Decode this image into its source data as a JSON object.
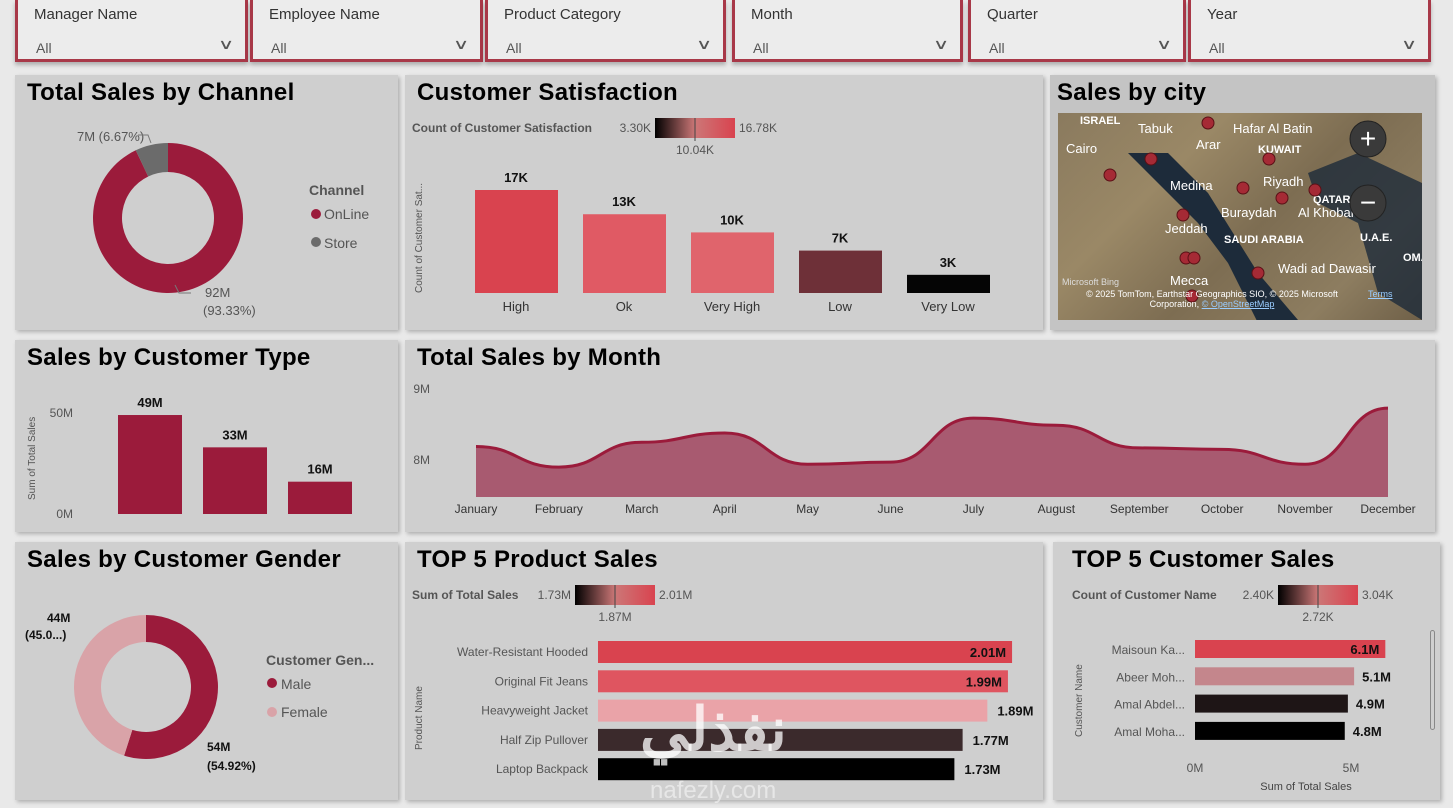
{
  "slicers": [
    {
      "label": "Manager Name",
      "value": "All"
    },
    {
      "label": "Employee Name",
      "value": "All"
    },
    {
      "label": "Product Category",
      "value": "All"
    },
    {
      "label": "Month",
      "value": "All"
    },
    {
      "label": "Quarter",
      "value": "All"
    },
    {
      "label": "Year",
      "value": "All"
    }
  ],
  "colors": {
    "primary": "#9b1b3b",
    "store": "#6b6b6b",
    "female": "#d9a3a8"
  },
  "channel": {
    "title": "Total Sales by Channel",
    "legend_title": "Channel",
    "slices": [
      {
        "name": "OnLine",
        "value": 92,
        "label": "92M",
        "pct": "(93.33%)"
      },
      {
        "name": "Store",
        "value": 7,
        "label": "7M (6.67%)"
      }
    ]
  },
  "satisfaction": {
    "title": "Customer Satisfaction",
    "legend_label": "Count of Customer Satisfaction",
    "grad_min": "3.30K",
    "grad_mid": "10.04K",
    "grad_max": "16.78K",
    "ylabel": "Count of Customer Sat...",
    "bars": [
      {
        "cat": "High",
        "value": 17,
        "label": "17K",
        "color": "#d9434f"
      },
      {
        "cat": "Ok",
        "value": 13,
        "label": "13K",
        "color": "#e05a64"
      },
      {
        "cat": "Very High",
        "value": 10,
        "label": "10K",
        "color": "#e0646c"
      },
      {
        "cat": "Low",
        "value": 7,
        "label": "7K",
        "color": "#6e3038"
      },
      {
        "cat": "Very Low",
        "value": 3,
        "label": "3K",
        "color": "#050505"
      }
    ]
  },
  "city_map": {
    "title": "Sales by city",
    "places": [
      "Tabuk",
      "Hafar Al Batin",
      "Cairo",
      "Arar",
      "KUWAIT",
      "Medina",
      "Riyadh",
      "Buraydah",
      "Al Khobar",
      "Jeddah",
      "SAUDI ARABIA",
      "U.A.E.",
      "Wadi ad Dawasir",
      "Mecca",
      "ISRAEL",
      "OMAN",
      "QATAR"
    ],
    "attribution": "© 2025 TomTom, Earthstar Geographics SIO, © 2025 Microsoft Corporation,",
    "osm": "© OpenStreetMap",
    "terms": "Terms",
    "bing": "Microsoft Bing",
    "zoom_in": "+",
    "zoom_out": "−"
  },
  "customer_type": {
    "title": "Sales by Customer Type",
    "ylabel": "Sum of Total Sales",
    "ticks": [
      "50M",
      "0M"
    ],
    "bars": [
      {
        "value": 49,
        "label": "49M"
      },
      {
        "value": 33,
        "label": "33M"
      },
      {
        "value": 16,
        "label": "16M"
      }
    ]
  },
  "chart_data": {
    "type": "area",
    "title": "Total Sales by Month",
    "categories": [
      "January",
      "February",
      "March",
      "April",
      "May",
      "June",
      "July",
      "August",
      "September",
      "October",
      "November",
      "December"
    ],
    "values": [
      8.19,
      7.9,
      8.25,
      8.38,
      7.94,
      7.97,
      8.59,
      8.49,
      8.17,
      8.15,
      7.94,
      8.73
    ],
    "unit": "M",
    "yticks": [
      "9M",
      "8M"
    ],
    "ylim": [
      7.48,
      9
    ]
  },
  "gender": {
    "title": "Sales by Customer Gender",
    "legend_title": "Customer Gen...",
    "slices": [
      {
        "name": "Male",
        "value": 54.92,
        "label": "54M",
        "pct": "(54.92%)"
      },
      {
        "name": "Female",
        "value": 45.08,
        "label": "44M",
        "pct": "(45.0...)"
      }
    ]
  },
  "top_products": {
    "title": "TOP 5 Product Sales",
    "legend_label": "Sum of Total Sales",
    "grad_min": "1.73M",
    "grad_mid": "1.87M",
    "grad_max": "2.01M",
    "ylabel": "Product Name",
    "bars": [
      {
        "name": "Water-Resistant Hooded",
        "value": 2.01,
        "label": "2.01M",
        "color": "#d9434f"
      },
      {
        "name": "Original Fit Jeans",
        "value": 1.99,
        "label": "1.99M",
        "color": "#df5560"
      },
      {
        "name": "Heavyweight Jacket",
        "value": 1.89,
        "label": "1.89M",
        "color": "#eaa3a8"
      },
      {
        "name": "Half Zip Pullover",
        "value": 1.77,
        "label": "1.77M",
        "color": "#3b2a2c"
      },
      {
        "name": "Laptop Backpack",
        "value": 1.73,
        "label": "1.73M",
        "color": "#000000"
      }
    ]
  },
  "top_customers": {
    "title": "TOP 5 Customer Sales",
    "legend_label": "Count of Customer Name",
    "grad_min": "2.40K",
    "grad_mid": "2.72K",
    "grad_max": "3.04K",
    "ylabel": "Customer Name",
    "xlabel": "Sum of Total Sales",
    "xticks": [
      "0M",
      "5M"
    ],
    "bars": [
      {
        "name": "Maisoun Ka...",
        "value": 6.1,
        "label": "6.1M",
        "color": "#d9434f"
      },
      {
        "name": "Abeer Moh...",
        "value": 5.1,
        "label": "5.1M",
        "color": "#c4868c"
      },
      {
        "name": "Amal Abdel...",
        "value": 4.9,
        "label": "4.9M",
        "color": "#1e1516"
      },
      {
        "name": "Amal Moha...",
        "value": 4.8,
        "label": "4.8M",
        "color": "#000000"
      }
    ]
  },
  "watermark": {
    "arabic": "نفذلي",
    "latin": "nafezly.com"
  }
}
